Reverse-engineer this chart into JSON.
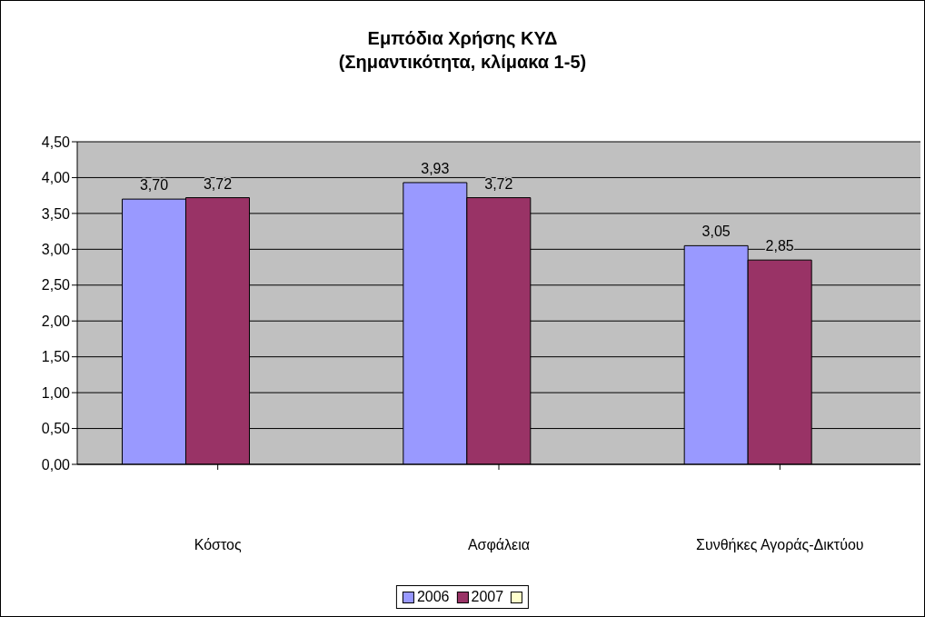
{
  "chart_data": {
    "type": "bar",
    "title": "Εμπόδια Χρήσης ΚΥΔ\n(Σημαντικότητα, κλίμακα 1-5)",
    "categories": [
      "Κόστος",
      "Ασφάλεια",
      "Συνθήκες Αγοράς-Δικτύου"
    ],
    "series": [
      {
        "name": "2006",
        "color": "#9999ff",
        "values": [
          3.7,
          3.93,
          3.05
        ],
        "value_labels": [
          "3,70",
          "3,93",
          "3,05"
        ]
      },
      {
        "name": "2007",
        "color": "#993366",
        "values": [
          3.72,
          3.72,
          2.85
        ],
        "value_labels": [
          "3,72",
          "3,72",
          "2,85"
        ]
      },
      {
        "color": "#ffffcc",
        "values": [
          null,
          null,
          null
        ]
      }
    ],
    "ylim": [
      0,
      4.5
    ],
    "yticks": [
      {
        "value": 0,
        "label": "0,00"
      },
      {
        "value": 0.5,
        "label": "0,50"
      },
      {
        "value": 1,
        "label": "1,00"
      },
      {
        "value": 1.5,
        "label": "1,50"
      },
      {
        "value": 2,
        "label": "2,00"
      },
      {
        "value": 2.5,
        "label": "2,50"
      },
      {
        "value": 3,
        "label": "3,00"
      },
      {
        "value": 3.5,
        "label": "3,50"
      },
      {
        "value": 4,
        "label": "4,00"
      },
      {
        "value": 4.5,
        "label": "4,50"
      }
    ],
    "grid": "y",
    "legend": "bottom"
  }
}
